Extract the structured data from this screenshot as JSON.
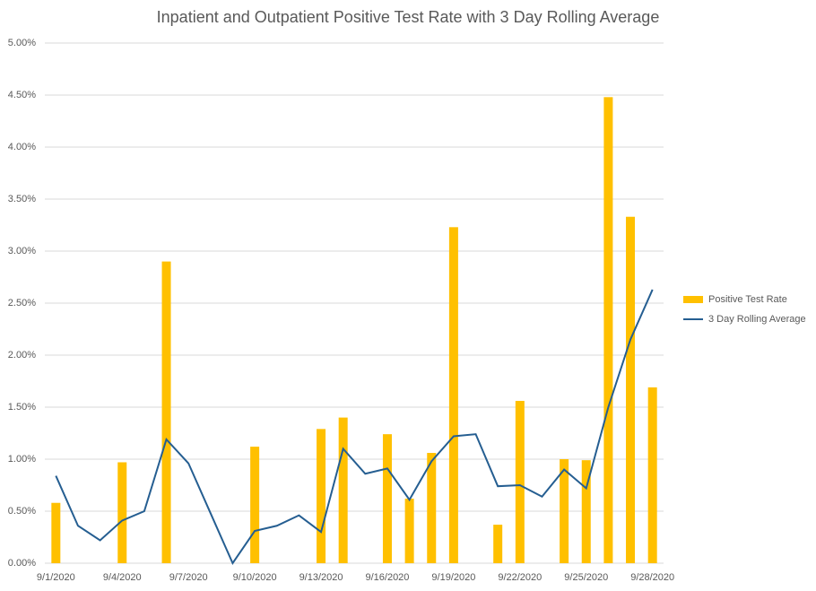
{
  "chart_data": {
    "type": "bar_line",
    "title": "Inpatient and Outpatient Positive Test Rate with 3 Day Rolling Average",
    "categories": [
      "9/1/2020",
      null,
      null,
      "9/4/2020",
      null,
      null,
      "9/7/2020",
      null,
      null,
      "9/10/2020",
      null,
      null,
      "9/13/2020",
      null,
      null,
      "9/16/2020",
      null,
      null,
      "9/19/2020",
      null,
      null,
      "9/22/2020",
      null,
      null,
      "9/25/2020",
      null,
      null,
      "9/28/2020"
    ],
    "series": [
      {
        "name": "Positive Test Rate",
        "type": "bar",
        "color": "#ffc000",
        "values": [
          0.58,
          0,
          0,
          0.97,
          0,
          2.9,
          0,
          0,
          0,
          1.12,
          0,
          0,
          1.29,
          1.4,
          0,
          1.24,
          0.62,
          1.06,
          3.23,
          0,
          0.37,
          1.56,
          0,
          1.0,
          0.99,
          4.48,
          3.33,
          1.69
        ]
      },
      {
        "name": "3 Day Rolling Average",
        "type": "line",
        "color": "#255e91",
        "values": [
          0.84,
          0.36,
          0.22,
          0.41,
          0.5,
          1.19,
          0.96,
          0.48,
          0.0,
          0.31,
          0.36,
          0.46,
          0.3,
          1.1,
          0.86,
          0.91,
          0.61,
          0.98,
          1.22,
          1.24,
          0.74,
          0.75,
          0.64,
          0.9,
          0.72,
          1.5,
          2.15,
          2.63
        ]
      }
    ],
    "ylim": [
      0,
      5
    ],
    "yticks": [
      {
        "value": 0,
        "label": "0.00%"
      },
      {
        "value": 0.5,
        "label": "0.50%"
      },
      {
        "value": 1,
        "label": "1.00%"
      },
      {
        "value": 1.5,
        "label": "1.50%"
      },
      {
        "value": 2,
        "label": "2.00%"
      },
      {
        "value": 2.5,
        "label": "2.50%"
      },
      {
        "value": 3,
        "label": "3.00%"
      },
      {
        "value": 3.5,
        "label": "3.50%"
      },
      {
        "value": 4,
        "label": "4.00%"
      },
      {
        "value": 4.5,
        "label": "4.50%"
      },
      {
        "value": 5,
        "label": "5.00%"
      }
    ],
    "grid": true,
    "legend": "right"
  }
}
